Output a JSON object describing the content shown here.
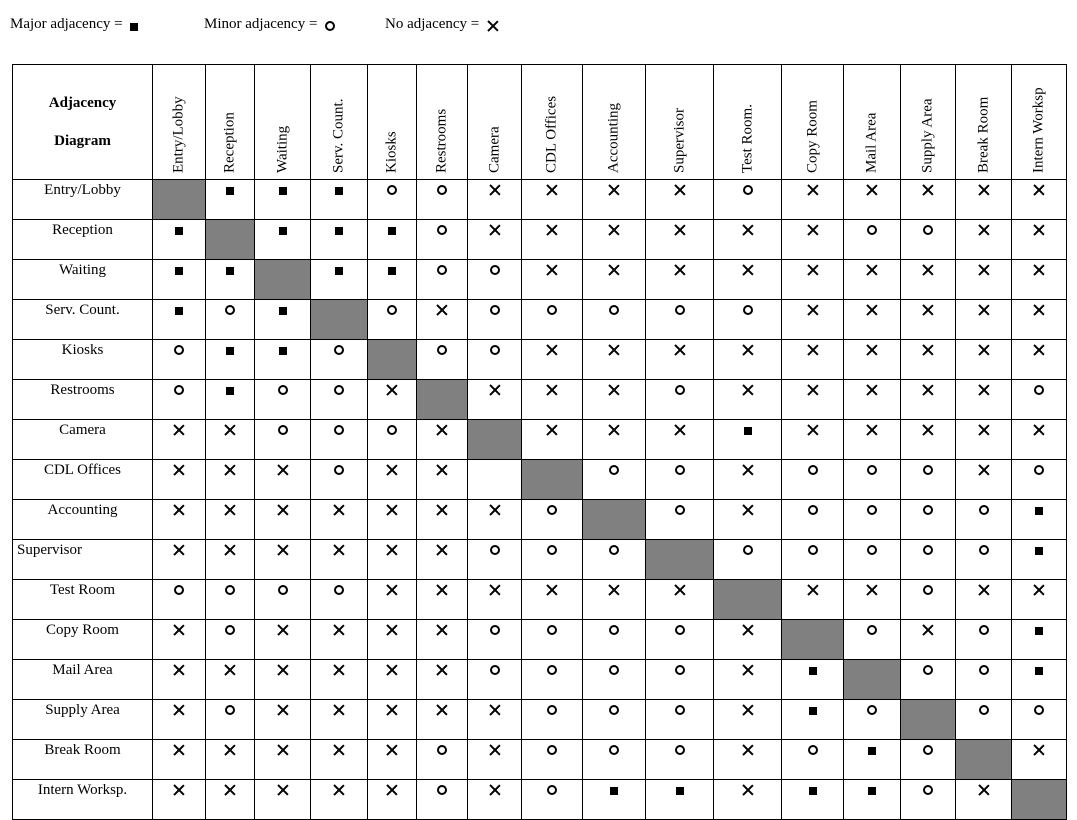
{
  "legend": {
    "major_label": "Major adjacency =",
    "minor_label": "Minor adjacency =",
    "none_label": "No adjacency ="
  },
  "corner": {
    "line1": "Adjacency",
    "line2": "Diagram"
  },
  "columns": [
    "Entry/Lobby",
    "Reception",
    "Waiting",
    "Serv. Count.",
    "Kiosks",
    "Restrooms",
    "Camera",
    "CDL Offices",
    "Accounting",
    "Supervisor",
    "Test Room.",
    "Copy Room",
    "Mail Area",
    "Supply Area",
    "Break Room",
    "Intern Worksp"
  ],
  "rows": [
    {
      "label": "Entry/Lobby",
      "cells": [
        "D",
        "M",
        "M",
        "M",
        "m",
        "m",
        "x",
        "x",
        "x",
        "x",
        "m",
        "x",
        "x",
        "x",
        "x",
        "x"
      ]
    },
    {
      "label": "Reception",
      "cells": [
        "M",
        "D",
        "M",
        "M",
        "M",
        "m",
        "x",
        "x",
        "x",
        "x",
        "x",
        "x",
        "m",
        "m",
        "x",
        "x"
      ]
    },
    {
      "label": "Waiting",
      "cells": [
        "M",
        "M",
        "D",
        "M",
        "M",
        "m",
        "m",
        "x",
        "x",
        "x",
        "x",
        "x",
        "x",
        "x",
        "x",
        "x"
      ]
    },
    {
      "label": "Serv. Count.",
      "cells": [
        "M",
        "m",
        "M",
        "D",
        "m",
        "x",
        "m",
        "m",
        "m",
        "m",
        "m",
        "x",
        "x",
        "x",
        "x",
        "x"
      ]
    },
    {
      "label": "Kiosks",
      "cells": [
        "m",
        "M",
        "M",
        "m",
        "D",
        "m",
        "m",
        "x",
        "x",
        "x",
        "x",
        "x",
        "x",
        "x",
        "x",
        "x"
      ]
    },
    {
      "label": "Restrooms",
      "cells": [
        "m",
        "M",
        "m",
        "m",
        "x",
        "D",
        "x",
        "x",
        "x",
        "m",
        "x",
        "x",
        "x",
        "x",
        "x",
        "m"
      ]
    },
    {
      "label": "Camera",
      "cells": [
        "x",
        "x",
        "m",
        "m",
        "m",
        "x",
        "D",
        "x",
        "x",
        "x",
        "M",
        "x",
        "x",
        "x",
        "x",
        "x"
      ]
    },
    {
      "label": "CDL Offices",
      "cells": [
        "x",
        "x",
        "x",
        "m",
        "x",
        "x",
        "",
        "D",
        "m",
        "m",
        "x",
        "m",
        "m",
        "m",
        "x",
        "m"
      ]
    },
    {
      "label": "Accounting",
      "cells": [
        "x",
        "x",
        "x",
        "x",
        "x",
        "x",
        "x",
        "m",
        "D",
        "m",
        "x",
        "m",
        "m",
        "m",
        "m",
        "M"
      ]
    },
    {
      "label": "Supervisor",
      "cells": [
        "x",
        "x",
        "x",
        "x",
        "x",
        "x",
        "m",
        "m",
        "m",
        "D",
        "m",
        "m",
        "m",
        "m",
        "m",
        "M"
      ]
    },
    {
      "label": "Test Room",
      "cells": [
        "m",
        "m",
        "m",
        "m",
        "x",
        "x",
        "x",
        "x",
        "x",
        "x",
        "D",
        "x",
        "x",
        "m",
        "x",
        "x"
      ]
    },
    {
      "label": "Copy Room",
      "cells": [
        "x",
        "m",
        "x",
        "x",
        "x",
        "x",
        "m",
        "m",
        "m",
        "m",
        "x",
        "D",
        "m",
        "x",
        "m",
        "M"
      ]
    },
    {
      "label": "Mail Area",
      "cells": [
        "x",
        "x",
        "x",
        "x",
        "x",
        "x",
        "m",
        "m",
        "m",
        "m",
        "x",
        "M",
        "D",
        "m",
        "m",
        "M"
      ]
    },
    {
      "label": "Supply Area",
      "cells": [
        "x",
        "m",
        "x",
        "x",
        "x",
        "x",
        "x",
        "m",
        "m",
        "m",
        "x",
        "M",
        "m",
        "D",
        "m",
        "m"
      ]
    },
    {
      "label": "Break Room",
      "cells": [
        "x",
        "x",
        "x",
        "x",
        "x",
        "m",
        "x",
        "m",
        "m",
        "m",
        "x",
        "m",
        "M",
        "m",
        "D",
        "x"
      ]
    },
    {
      "label": "Intern Worksp.",
      "cells": [
        "x",
        "x",
        "x",
        "x",
        "x",
        "m",
        "x",
        "m",
        "M",
        "M",
        "x",
        "M",
        "M",
        "m",
        "x",
        "D"
      ]
    }
  ],
  "symbols": {
    "M": "major",
    "m": "minor",
    "x": "none",
    "D": "diagonal",
    "": "empty"
  },
  "colors": {
    "diagonal": "#808080",
    "line": "#000000"
  }
}
